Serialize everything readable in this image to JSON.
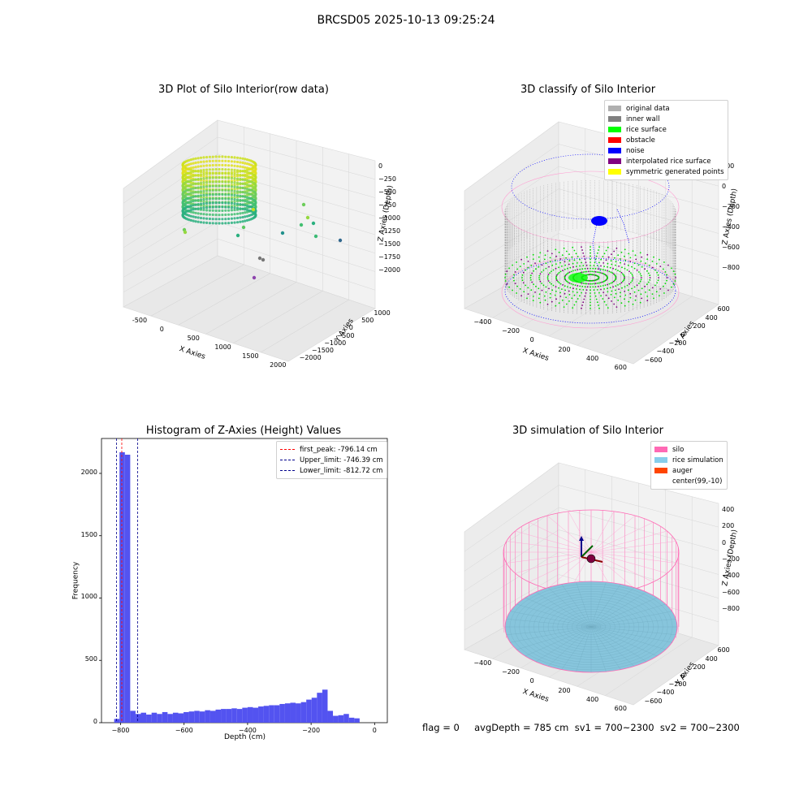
{
  "figure_title": "BRCSD05 2025-10-13 09:25:24",
  "panels": {
    "p1": {
      "title": "3D Plot of Silo Interior(row data)",
      "x_label": "X Axies",
      "y_label": "Y Axies",
      "z_label": "Z Axies (Depth)",
      "x_ticks": [
        "-500",
        "0",
        "500",
        "1000",
        "1500",
        "2000"
      ],
      "y_ticks": [
        "1000",
        "500",
        "0",
        "−500",
        "−1000",
        "−1500",
        "−2000"
      ],
      "z_ticks": [
        "0",
        "−250",
        "−500",
        "−750",
        "−1000",
        "−1250",
        "−1500",
        "−1750",
        "−2000"
      ]
    },
    "p2": {
      "title": "3D classify of Silo Interior",
      "x_label": "X Axies",
      "y_label": "Y Axies",
      "z_label": "Z Axies (Depth)",
      "x_ticks": [
        "−400",
        "−200",
        "0",
        "200",
        "400",
        "600"
      ],
      "y_ticks": [
        "600",
        "400",
        "200",
        "0",
        "−200",
        "−400",
        "−600"
      ],
      "z_ticks": [
        "200",
        "0",
        "−200",
        "−400",
        "−600",
        "−800"
      ],
      "legend": [
        {
          "label": "original data",
          "color": "#b0b0b0"
        },
        {
          "label": "inner wall",
          "color": "#808080"
        },
        {
          "label": "rice surface",
          "color": "#00ff00"
        },
        {
          "label": "obstacle",
          "color": "#ff0000"
        },
        {
          "label": "noise",
          "color": "#0000ff"
        },
        {
          "label": "interpolated rice surface",
          "color": "#800080"
        },
        {
          "label": "symmetric generated points",
          "color": "#ffff00"
        }
      ]
    },
    "p3": {
      "title": "Histogram of Z-Axies (Height) Values",
      "x_label": "Depth (cm)",
      "y_label": "Frequency",
      "legend": [
        {
          "label": "first_peak: -796.14 cm",
          "color": "#ff0000"
        },
        {
          "label": "Upper_limit: -746.39 cm",
          "color": "#00008b"
        },
        {
          "label": "Lower_limit: -812.72 cm",
          "color": "#00008b"
        }
      ]
    },
    "p4": {
      "title": "3D simulation of Silo Interior",
      "x_label": "X Axies",
      "y_label": "Y Axies",
      "z_label": "Z Axies (Depth)",
      "x_ticks": [
        "−400",
        "−200",
        "0",
        "200",
        "400",
        "600"
      ],
      "y_ticks": [
        "600",
        "400",
        "200",
        "0",
        "−200",
        "−400",
        "−600"
      ],
      "z_ticks": [
        "400",
        "200",
        "0",
        "−200",
        "−400",
        "−600",
        "−800"
      ],
      "legend": [
        {
          "label": "silo",
          "color": "#ff69b4"
        },
        {
          "label": "rice simulation",
          "color": "#87ceeb"
        },
        {
          "label": "auger",
          "color": "#ff4500"
        },
        {
          "label": "center(99,-10)",
          "color": "#ffffff"
        }
      ]
    }
  },
  "status_line": "flag = 0     avgDepth = 785 cm  sv1 = 700~2300  sv2 = 700~2300",
  "chart_data": [
    {
      "type": "histogram",
      "title": "Histogram of Z-Axies (Height) Values",
      "xlabel": "Depth (cm)",
      "ylabel": "Frequency",
      "xlim": [
        -860,
        40
      ],
      "ylim": [
        0,
        2280
      ],
      "xticks": [
        -800,
        -600,
        -400,
        -200,
        0
      ],
      "yticks": [
        0,
        500,
        1000,
        1500,
        2000
      ],
      "bin_start": -820,
      "bin_width": 16.8,
      "counts": [
        30,
        2170,
        2150,
        95,
        70,
        80,
        65,
        80,
        70,
        85,
        70,
        80,
        75,
        85,
        90,
        95,
        90,
        100,
        95,
        105,
        110,
        110,
        115,
        110,
        120,
        125,
        120,
        130,
        135,
        140,
        140,
        150,
        155,
        160,
        155,
        165,
        185,
        200,
        240,
        265,
        95,
        55,
        60,
        70,
        40,
        35
      ],
      "vlines": [
        {
          "name": "first_peak: -796.14 cm",
          "x": -796.14,
          "color": "#ff0000"
        },
        {
          "name": "Upper_limit: -746.39 cm",
          "x": -746.39,
          "color": "#00008b"
        },
        {
          "name": "Lower_limit: -812.72 cm",
          "x": -812.72,
          "color": "#00008b"
        }
      ],
      "bar_color": "#5050f0"
    },
    {
      "type": "scatter3d",
      "title": "3D Plot of Silo Interior(row data)",
      "xlabel": "X Axies",
      "ylabel": "Y Axies",
      "zlabel": "Z Axies (Depth)",
      "xlim": [
        -600,
        2200
      ],
      "ylim": [
        -2000,
        1200
      ],
      "zlim": [
        -2000,
        0
      ],
      "outliers": [
        {
          "x": 1300,
          "y": 600,
          "z": -850
        },
        {
          "x": 1500,
          "y": 300,
          "z": -1050
        },
        {
          "x": 1700,
          "y": 100,
          "z": -1150
        },
        {
          "x": 1200,
          "y": -200,
          "z": -1300
        },
        {
          "x": 600,
          "y": -500,
          "z": -1500
        },
        {
          "x": 1900,
          "y": -300,
          "z": -1350
        }
      ]
    },
    {
      "type": "scatter3d",
      "title": "3D classify of Silo Interior",
      "xlabel": "X Axies",
      "ylabel": "Y Axies",
      "zlabel": "Z Axies (Depth)"
    },
    {
      "type": "surface3d",
      "title": "3D simulation of Silo Interior",
      "xlabel": "X Axies",
      "ylabel": "Y Axies",
      "zlabel": "Z Axies (Depth)",
      "center": "center(99,-10)"
    }
  ]
}
